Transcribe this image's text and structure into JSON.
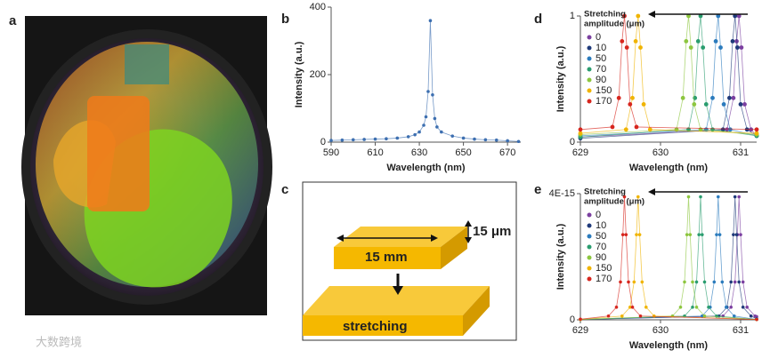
{
  "panels": {
    "labels": [
      "a",
      "b",
      "c",
      "d",
      "e"
    ]
  },
  "diagram": {
    "width_label": "15 mm",
    "thickness_label": "15 μm",
    "action_label": "stretching"
  },
  "watermark": "大数跨境",
  "chart_data": [
    {
      "type": "line",
      "xlabel": "Wavelength (nm)",
      "ylabel": "Intensity (a.u.)",
      "xlim": [
        590,
        676
      ],
      "ylim": [
        0,
        400
      ],
      "xticks": [
        590,
        610,
        630,
        650,
        670
      ],
      "yticks": [
        0,
        200,
        400
      ],
      "series": [
        {
          "name": null,
          "color": "#3d6fb0",
          "x": [
            590,
            595,
            600,
            605,
            610,
            615,
            620,
            625,
            628,
            630,
            632,
            633,
            634,
            635,
            636,
            637,
            638,
            640,
            645,
            650,
            655,
            660,
            665,
            670,
            675
          ],
          "values": [
            5,
            6,
            7,
            8,
            9,
            10,
            12,
            16,
            22,
            30,
            50,
            75,
            150,
            360,
            140,
            70,
            45,
            30,
            18,
            12,
            9,
            7,
            6,
            4,
            2
          ]
        }
      ]
    },
    {
      "type": "line",
      "xlabel": "Wavelength (nm)",
      "ylabel": "Intensity (a.u.)",
      "xlim": [
        629,
        631.2
      ],
      "ylim": [
        0,
        1
      ],
      "xticks": [
        629,
        630,
        631
      ],
      "yticks": [
        0,
        1
      ],
      "legend": "upper left",
      "legend_title": [
        "Stretching",
        "amplitude (μm)"
      ],
      "series": [
        {
          "name": "0",
          "color": "#7b3fa0",
          "x": [
            629,
            630.83,
            630.91,
            630.95,
            630.98,
            631.01,
            631.05,
            631.13,
            631.2
          ],
          "values": [
            0.04,
            0.1,
            0.35,
            0.8,
            1,
            0.75,
            0.3,
            0.1,
            0.05
          ]
        },
        {
          "name": "10",
          "color": "#1f3a7a",
          "x": [
            629,
            630.78,
            630.86,
            630.9,
            630.93,
            630.96,
            631,
            631.08,
            631.2
          ],
          "values": [
            0.03,
            0.1,
            0.35,
            0.8,
            1,
            0.75,
            0.3,
            0.1,
            0.05
          ]
        },
        {
          "name": "50",
          "color": "#2b7bbd",
          "x": [
            629,
            630.57,
            630.65,
            630.69,
            630.72,
            630.75,
            630.79,
            630.87,
            631.2
          ],
          "values": [
            0.05,
            0.1,
            0.35,
            0.8,
            1,
            0.75,
            0.3,
            0.1,
            0.05
          ]
        },
        {
          "name": "70",
          "color": "#2a9d6f",
          "x": [
            629,
            630.35,
            630.43,
            630.47,
            630.5,
            630.53,
            630.57,
            630.65,
            631.2
          ],
          "values": [
            0.04,
            0.1,
            0.35,
            0.8,
            1,
            0.75,
            0.3,
            0.1,
            0.05
          ]
        },
        {
          "name": "90",
          "color": "#8dc63f",
          "x": [
            629,
            630.2,
            630.28,
            630.32,
            630.35,
            630.38,
            630.42,
            630.5,
            631.2
          ],
          "values": [
            0.06,
            0.1,
            0.35,
            0.8,
            1,
            0.75,
            0.3,
            0.1,
            0.06
          ]
        },
        {
          "name": "150",
          "color": "#f0b400",
          "x": [
            629,
            629.57,
            629.65,
            629.69,
            629.72,
            629.75,
            629.79,
            629.87,
            631.2
          ],
          "values": [
            0.07,
            0.1,
            0.35,
            0.8,
            1,
            0.75,
            0.3,
            0.1,
            0.07
          ]
        },
        {
          "name": "170",
          "color": "#d7261e",
          "x": [
            629,
            629.4,
            629.48,
            629.52,
            629.55,
            629.58,
            629.62,
            629.7,
            631.2
          ],
          "values": [
            0.1,
            0.12,
            0.35,
            0.8,
            1,
            0.75,
            0.3,
            0.12,
            0.1
          ]
        }
      ]
    },
    {
      "type": "line",
      "xlabel": "Wavelength (nm)",
      "ylabel": "Intensity (a.u.)",
      "xlim": [
        629,
        631.2
      ],
      "ylim": [
        0,
        4e-15
      ],
      "xticks": [
        629,
        630,
        631
      ],
      "yticks": [
        0,
        {
          "value": 4e-15,
          "label": "4E-15"
        }
      ],
      "legend": "upper left",
      "legend_title": [
        "Stretching",
        "amplitude (μm)"
      ],
      "series": [
        {
          "name": "0",
          "color": "#7b3fa0",
          "x": [
            629,
            630.78,
            630.88,
            630.93,
            630.96,
            630.98,
            631,
            631.03,
            631.08,
            631.18,
            631.2
          ],
          "values": [
            1e-17,
            1.2e-16,
            4e-16,
            1.2e-15,
            2.7e-15,
            3.9e-15,
            2.7e-15,
            1.2e-15,
            4e-16,
            1.2e-16,
            1e-16
          ]
        },
        {
          "name": "10",
          "color": "#1f3a7a",
          "x": [
            629,
            630.73,
            630.83,
            630.88,
            630.91,
            630.93,
            630.95,
            630.98,
            631.03,
            631.13,
            631.2
          ],
          "values": [
            1e-17,
            1.2e-16,
            4e-16,
            1.2e-15,
            2.7e-15,
            3.9e-15,
            2.7e-15,
            1.2e-15,
            4e-16,
            1.2e-16,
            3e-17
          ]
        },
        {
          "name": "50",
          "color": "#2b7bbd",
          "x": [
            629,
            630.52,
            630.62,
            630.67,
            630.7,
            630.72,
            630.74,
            630.77,
            630.82,
            630.92,
            631.2
          ],
          "values": [
            1e-17,
            1.2e-16,
            4e-16,
            1.2e-15,
            2.7e-15,
            3.9e-15,
            2.7e-15,
            1.2e-15,
            4e-16,
            1.2e-16,
            1e-17
          ]
        },
        {
          "name": "70",
          "color": "#2a9d6f",
          "x": [
            629,
            630.3,
            630.4,
            630.45,
            630.48,
            630.5,
            630.52,
            630.55,
            630.6,
            630.7,
            631.2
          ],
          "values": [
            1e-17,
            1.2e-16,
            4e-16,
            1.2e-15,
            2.7e-15,
            3.9e-15,
            2.7e-15,
            1.2e-15,
            4e-16,
            1.2e-16,
            1e-17
          ]
        },
        {
          "name": "90",
          "color": "#8dc63f",
          "x": [
            629,
            630.15,
            630.25,
            630.3,
            630.33,
            630.35,
            630.37,
            630.4,
            630.45,
            630.55,
            631.2
          ],
          "values": [
            1e-17,
            1.2e-16,
            4e-16,
            1.2e-15,
            2.7e-15,
            3.9e-15,
            2.7e-15,
            1.2e-15,
            4e-16,
            1.2e-16,
            1e-17
          ]
        },
        {
          "name": "150",
          "color": "#f0b400",
          "x": [
            629,
            629.52,
            629.62,
            629.67,
            629.7,
            629.72,
            629.74,
            629.77,
            629.82,
            629.92,
            631.2
          ],
          "values": [
            1e-17,
            1.2e-16,
            4e-16,
            1.2e-15,
            2.7e-15,
            3.9e-15,
            2.7e-15,
            1.2e-15,
            4e-16,
            1.2e-16,
            1e-17
          ]
        },
        {
          "name": "170",
          "color": "#d7261e",
          "x": [
            629,
            629.35,
            629.45,
            629.5,
            629.53,
            629.55,
            629.57,
            629.6,
            629.65,
            629.75,
            631.2
          ],
          "values": [
            2e-17,
            1.2e-16,
            4e-16,
            1.2e-15,
            2.7e-15,
            3.9e-15,
            2.7e-15,
            1.2e-15,
            4e-16,
            1.2e-16,
            1e-17
          ]
        }
      ]
    }
  ]
}
